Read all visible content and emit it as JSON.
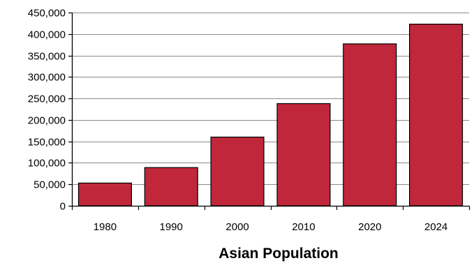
{
  "chart_data": {
    "type": "bar",
    "title": "Asian Population",
    "xlabel": "",
    "ylabel": "",
    "categories": [
      "1980",
      "1990",
      "2000",
      "2010",
      "2020",
      "2024"
    ],
    "values": [
      53000,
      89000,
      160000,
      238000,
      377000,
      423000
    ],
    "ylim": [
      0,
      450000
    ],
    "y_ticks": [
      "0",
      "50,000",
      "100,000",
      "150,000",
      "200,000",
      "250,000",
      "300,000",
      "350,000",
      "400,000",
      "450,000"
    ],
    "y_tick_values": [
      0,
      50000,
      100000,
      150000,
      200000,
      250000,
      300000,
      350000,
      400000,
      450000
    ],
    "grid": true,
    "legend": "none",
    "bar_color": "#c0273a",
    "grid_color": "#8a8a8a"
  }
}
